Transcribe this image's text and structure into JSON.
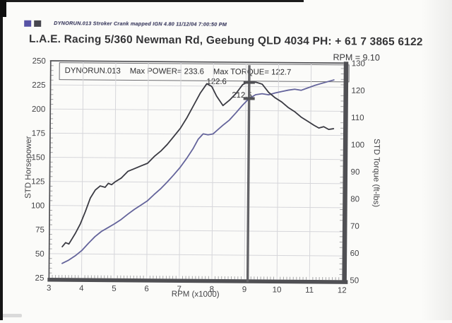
{
  "page": {
    "header_note": "DYNORUN.013  Stroker Crank mapped IGN 4.80  11/12/04 7:00:50 PM",
    "title": "L.A.E. Racing 5/360 Newman Rd, Geebung QLD 4034 PH: + 61 7 3865 6122",
    "cursor_readout": "RPM = 9.10",
    "swatches": [
      "#5753a5",
      "#46464e"
    ]
  },
  "annotation": {
    "run": "DYNORUN.013",
    "max_power": "Max POWER= 233.6",
    "max_torque": "Max TORQUE= 122.7"
  },
  "cursor": {
    "rpm": 9.1,
    "power_label": "212.5",
    "torque_label": "122.6",
    "power_value": 212.5,
    "torque_value": 122.6
  },
  "chart_data": {
    "type": "line",
    "title": "DYNORUN.013",
    "xlabel": "RPM (x1000)",
    "ylabel_left": "STD Horsepower",
    "ylabel_right": "STD Torque (ft-lbs)",
    "xlim": [
      3,
      12
    ],
    "ylim_left": [
      25,
      250
    ],
    "ylim_right": [
      50,
      130
    ],
    "x_ticks": [
      3,
      4,
      5,
      6,
      7,
      8,
      9,
      10,
      11,
      12
    ],
    "y_ticks_left": [
      25,
      50,
      75,
      100,
      125,
      150,
      175,
      200,
      225,
      250
    ],
    "y_ticks_right": [
      50,
      60,
      70,
      80,
      90,
      100,
      110,
      120,
      130
    ],
    "grid": true,
    "legend_position": "none",
    "max_power": 233.6,
    "max_torque": 122.7,
    "colors": {
      "power": "#64649b",
      "torque": "#3a3a42",
      "cursor": "#636367",
      "grid": "#d6d6da",
      "frame": "#505054",
      "minor_tick": "#9d9da0"
    },
    "series": [
      {
        "name": "STD Power (hp)",
        "axis": "left",
        "color": "#64649b",
        "x": [
          3.4,
          3.6,
          3.8,
          4.0,
          4.2,
          4.4,
          4.6,
          4.8,
          5.0,
          5.2,
          5.4,
          5.6,
          5.8,
          6.0,
          6.2,
          6.4,
          6.6,
          6.8,
          7.0,
          7.2,
          7.4,
          7.55,
          7.7,
          7.85,
          8.0,
          8.15,
          8.3,
          8.5,
          8.7,
          8.9,
          9.1,
          9.3,
          9.5,
          9.7,
          9.9,
          10.1,
          10.3,
          10.5,
          10.7,
          10.9,
          11.1,
          11.3,
          11.5,
          11.7
        ],
        "values": [
          40.0,
          43.5,
          48.0,
          53.5,
          61.0,
          68.0,
          73.5,
          77.5,
          81.5,
          86.0,
          91.5,
          96.5,
          101.0,
          105.5,
          112.0,
          118.0,
          125.0,
          132.5,
          140.5,
          150.0,
          160.5,
          170.0,
          175.5,
          174.5,
          175.5,
          180.0,
          184.5,
          190.0,
          197.5,
          205.5,
          212.5,
          216.5,
          217.5,
          216.5,
          218.5,
          220.0,
          221.5,
          222.5,
          221.5,
          224.0,
          226.5,
          228.5,
          230.5,
          232.5
        ]
      },
      {
        "name": "STD Torque (ft-lbs)",
        "axis": "right",
        "color": "#3a3a42",
        "x": [
          3.4,
          3.5,
          3.6,
          3.7,
          3.8,
          3.95,
          4.1,
          4.25,
          4.4,
          4.55,
          4.7,
          4.8,
          4.9,
          5.0,
          5.2,
          5.4,
          5.6,
          5.8,
          6.0,
          6.2,
          6.4,
          6.6,
          6.8,
          7.0,
          7.2,
          7.4,
          7.6,
          7.8,
          7.95,
          8.1,
          8.3,
          8.5,
          8.7,
          8.9,
          9.0,
          9.1,
          9.3,
          9.5,
          9.7,
          9.9,
          10.1,
          10.3,
          10.5,
          10.7,
          10.9,
          11.1,
          11.25,
          11.4,
          11.55,
          11.7
        ],
        "values": [
          61.5,
          63.0,
          62.5,
          64.5,
          66.5,
          70.0,
          74.5,
          79.5,
          82.5,
          84.0,
          83.5,
          85.0,
          84.5,
          85.5,
          87.0,
          89.5,
          90.5,
          91.5,
          92.5,
          95.0,
          97.0,
          99.5,
          102.5,
          105.5,
          109.5,
          114.0,
          118.5,
          122.0,
          121.0,
          117.5,
          114.0,
          116.0,
          118.5,
          121.8,
          122.4,
          122.6,
          122.7,
          122.0,
          119.0,
          117.0,
          115.5,
          113.5,
          112.0,
          110.0,
          108.5,
          107.0,
          106.0,
          106.5,
          105.5,
          105.8
        ]
      }
    ]
  }
}
